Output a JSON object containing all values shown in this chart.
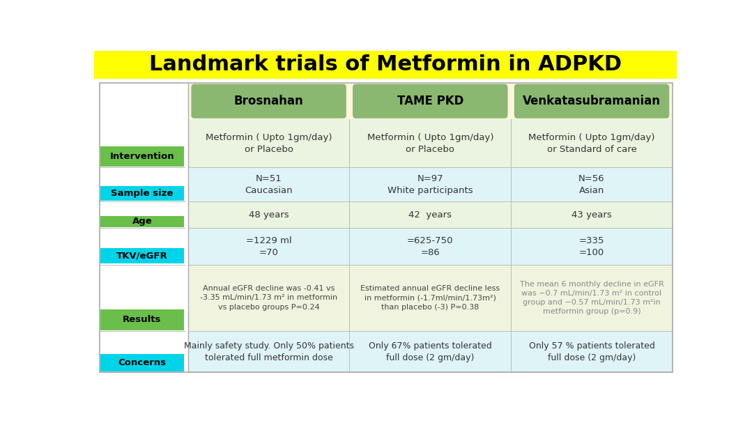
{
  "title": "Landmark trials of Metformin in ADPKD",
  "title_bg": "#ffff00",
  "title_color": "#000000",
  "title_fontsize": 22,
  "col_headers": [
    "Brosnahan",
    "TAME PKD",
    "Venkatasubramanian"
  ],
  "col_header_bg": "#8ab870",
  "col_header_color": "#000000",
  "row_labels": [
    "Intervention",
    "Sample size",
    "Age",
    "TKV/eGFR",
    "Results",
    "Concerns"
  ],
  "row_label_colors": [
    "#6abf4b",
    "#00d4e8",
    "#6abf4b",
    "#00d4e8",
    "#6abf4b",
    "#00d4e8"
  ],
  "row_label_text_color": "#000000",
  "row_bg_colors": [
    "#eaf4e0",
    "#dff4f7",
    "#eaf4e0",
    "#dff4f7",
    "#f0f4df",
    "#dff4f7"
  ],
  "cell_data": [
    [
      "Metformin ( Upto 1gm/day)\nor Placebo",
      "Metformin ( Upto 1gm/day)\nor Placebo",
      "Metformin ( Upto 1gm/day)\nor Standard of care"
    ],
    [
      "N=51\nCaucasian",
      "N=97\nWhite participants",
      "N=56\nAsian"
    ],
    [
      "48 years",
      "42  years",
      "43 years"
    ],
    [
      "=1229 ml\n=70",
      "=625-750\n=86",
      "=335\n=100"
    ],
    [
      "Annual eGFR decline was -0.41 vs\n-3.35 mL/min/1.73 m² in metformin\nvs placebo groups P=0.24",
      "Estimated annual eGFR decline less\nin metformin (-1.7ml/min/1.73m²)\nthan placebo (-3) P=0.38",
      "The mean 6 monthly decline in eGFR\nwas −0.7 mL/min/1.73 m² in control\ngroup and −0.57 mL/min/1.73 m²in\nmetformin group (p=0.9)"
    ],
    [
      "Mainly safety study. Only 50% patients\ntolerated full metformin dose",
      "Only 67% patients tolerated\nfull dose (2 gm/day)",
      "Only 57 % patients tolerated\nfull dose (2 gm/day)"
    ]
  ],
  "cell_text_colors": [
    [
      "#333333",
      "#333333",
      "#333333"
    ],
    [
      "#333333",
      "#333333",
      "#333333"
    ],
    [
      "#333333",
      "#333333",
      "#333333"
    ],
    [
      "#333333",
      "#333333",
      "#333333"
    ],
    [
      "#444444",
      "#444444",
      "#888888"
    ],
    [
      "#333333",
      "#333333",
      "#333333"
    ]
  ],
  "cell_fontsizes": [
    9.5,
    9.5,
    9.5,
    9.5,
    8.0,
    9.0
  ],
  "figure_bg": "#ffffff",
  "header_bg": "#fdf5dd",
  "left_panel_bg": "#ffffff",
  "icon_emojis": [
    "💊",
    "👥",
    "👶",
    "🦴",
    "📈",
    "😱"
  ],
  "icon_fontsizes": [
    22,
    22,
    22,
    22,
    22,
    22
  ]
}
